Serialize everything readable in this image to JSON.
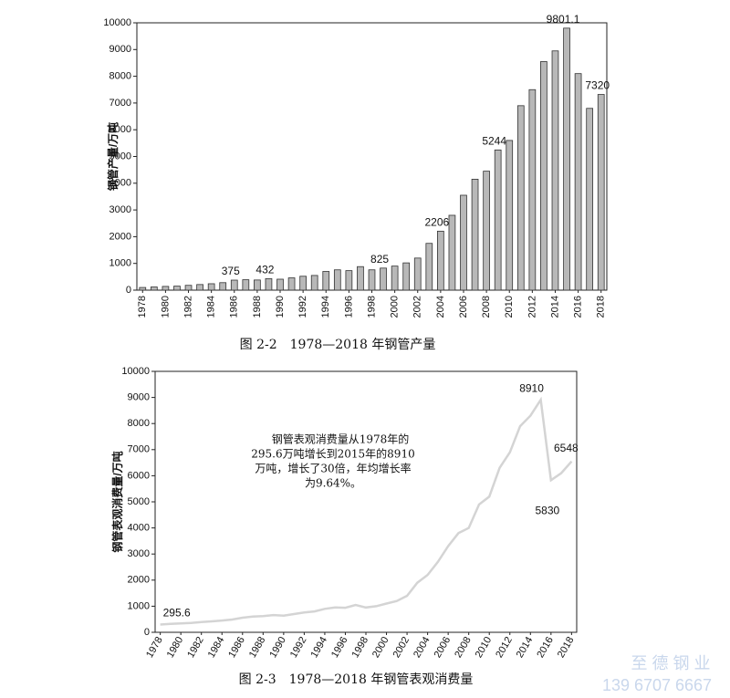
{
  "chart_data": [
    {
      "type": "bar",
      "caption": "图 2-2　1978—2018 年钢管产量",
      "y_label": "钢管产量/万吨",
      "categories": [
        "1978",
        null,
        "1980",
        null,
        "1982",
        null,
        "1984",
        null,
        "1986",
        null,
        "1988",
        null,
        "1990",
        null,
        "1992",
        null,
        "1994",
        null,
        "1996",
        null,
        "1998",
        null,
        "2000",
        null,
        "2002",
        null,
        "2004",
        null,
        "2006",
        null,
        "2008",
        null,
        "2010",
        null,
        "2012",
        null,
        "2014",
        null,
        "2016",
        null,
        "2018"
      ],
      "values": [
        100,
        120,
        140,
        150,
        180,
        210,
        240,
        280,
        375,
        390,
        380,
        432,
        410,
        460,
        520,
        550,
        700,
        760,
        730,
        880,
        760,
        825,
        900,
        1020,
        1200,
        1750,
        2206,
        2800,
        3550,
        4150,
        4450,
        5244,
        5600,
        6900,
        7500,
        8550,
        8950,
        9801.1,
        8100,
        6800,
        7320
      ],
      "value_labels": [
        null,
        null,
        null,
        null,
        null,
        null,
        null,
        null,
        "375",
        null,
        null,
        "432",
        null,
        null,
        null,
        null,
        null,
        null,
        null,
        null,
        null,
        "825",
        null,
        null,
        null,
        null,
        "2206",
        null,
        null,
        null,
        null,
        "5244",
        null,
        null,
        null,
        null,
        null,
        "9801.1",
        null,
        null,
        "7320"
      ],
      "color": "#b8b8b8",
      "ylim": [
        0,
        10000
      ],
      "yticks": [
        0,
        1000,
        2000,
        3000,
        4000,
        5000,
        6000,
        7000,
        8000,
        9000,
        10000
      ]
    },
    {
      "type": "line",
      "caption": "图 2-3　1978—2018 年钢管表观消费量",
      "y_label": "钢管表观消费量/万吨",
      "annotation": [
        "钢管表观消费量从1978年的",
        "295.6万吨增长到2015年的8910",
        "万吨，增长了30倍，年均增长率",
        "为9.64%。"
      ],
      "categories": [
        "1978",
        null,
        "1980",
        null,
        "1982",
        null,
        "1984",
        null,
        "1986",
        null,
        "1988",
        null,
        "1990",
        null,
        "1992",
        null,
        "1994",
        null,
        "1996",
        null,
        "1998",
        null,
        "2000",
        null,
        "2002",
        null,
        "2004",
        null,
        "2006",
        null,
        "2008",
        null,
        "2010",
        null,
        "2012",
        null,
        "2014",
        null,
        "2016",
        null,
        "2018"
      ],
      "values": [
        295.6,
        320,
        340,
        360,
        390,
        420,
        450,
        490,
        560,
        600,
        620,
        660,
        640,
        700,
        760,
        800,
        900,
        950,
        940,
        1050,
        950,
        1000,
        1100,
        1200,
        1400,
        1900,
        2200,
        2700,
        3300,
        3800,
        4000,
        4900,
        5200,
        6300,
        6900,
        7900,
        8300,
        8910,
        5830,
        6100,
        6548
      ],
      "value_labels": [
        "295.6",
        null,
        null,
        null,
        null,
        null,
        null,
        null,
        null,
        null,
        null,
        null,
        null,
        null,
        null,
        null,
        null,
        null,
        null,
        null,
        null,
        null,
        null,
        null,
        null,
        null,
        null,
        null,
        null,
        null,
        null,
        null,
        null,
        null,
        null,
        null,
        null,
        "8910",
        "5830",
        null,
        "6548"
      ],
      "color": "#d4d4d4",
      "ylim": [
        0,
        10000
      ],
      "yticks": [
        0,
        1000,
        2000,
        3000,
        4000,
        5000,
        6000,
        7000,
        8000,
        9000,
        10000
      ]
    }
  ],
  "watermark": {
    "name": "至 德 钢 业",
    "phone": "139 6707 6667"
  }
}
